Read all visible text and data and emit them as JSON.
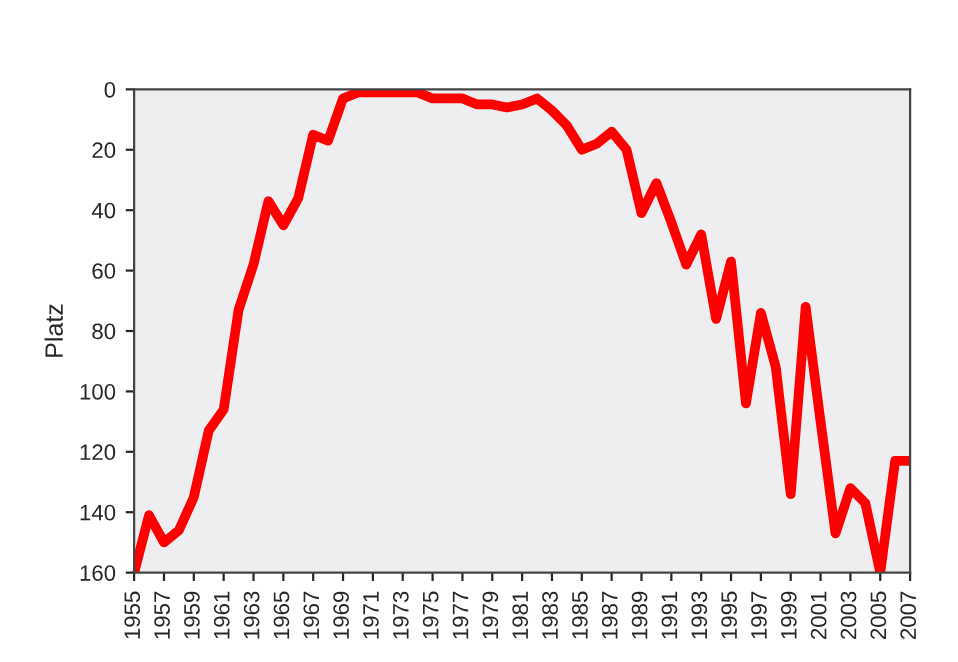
{
  "chart_data": {
    "type": "line",
    "ylabel": "Platz",
    "x": [
      1955,
      1956,
      1957,
      1958,
      1959,
      1960,
      1961,
      1962,
      1963,
      1964,
      1965,
      1966,
      1967,
      1968,
      1969,
      1970,
      1971,
      1972,
      1973,
      1974,
      1975,
      1976,
      1977,
      1978,
      1979,
      1980,
      1981,
      1982,
      1983,
      1984,
      1985,
      1986,
      1987,
      1988,
      1989,
      1990,
      1991,
      1992,
      1993,
      1994,
      1995,
      1996,
      1997,
      1998,
      1999,
      2000,
      2001,
      2002,
      2003,
      2004,
      2005,
      2006,
      2007
    ],
    "series": [
      {
        "color": "#ff0000",
        "values": [
          160,
          141,
          150,
          146,
          135,
          113,
          106,
          73,
          58,
          37,
          45,
          36,
          15,
          17,
          3,
          1,
          1,
          1,
          1,
          1,
          3,
          3,
          3,
          5,
          5,
          6,
          5,
          3,
          7,
          12,
          20,
          18,
          14,
          20,
          41,
          31,
          44,
          58,
          48,
          76,
          57,
          104,
          74,
          92,
          134,
          72,
          110,
          147,
          132,
          137,
          160,
          123,
          123
        ]
      }
    ],
    "xlim": [
      1955,
      2007
    ],
    "xticks": [
      1955,
      1957,
      1959,
      1961,
      1963,
      1965,
      1967,
      1969,
      1971,
      1973,
      1975,
      1977,
      1979,
      1981,
      1983,
      1985,
      1987,
      1989,
      1991,
      1993,
      1995,
      1997,
      1999,
      2001,
      2003,
      2005,
      2007
    ],
    "ylim": [
      160,
      0
    ],
    "yticks": [
      0,
      20,
      40,
      60,
      80,
      100,
      120,
      140,
      160
    ],
    "grid": false,
    "legend": false,
    "marker": "none",
    "line_style": "solid"
  }
}
